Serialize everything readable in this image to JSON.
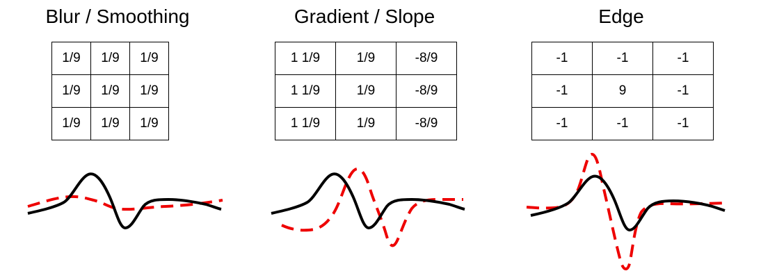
{
  "panels": [
    {
      "title": "Blur / Smoothing",
      "kernel": [
        [
          "1/9",
          "1/9",
          "1/9"
        ],
        [
          "1/9",
          "1/9",
          "1/9"
        ],
        [
          "1/9",
          "1/9",
          "1/9"
        ]
      ]
    },
    {
      "title": "Gradient / Slope",
      "kernel": [
        [
          "1 1/9",
          "1/9",
          "-8/9"
        ],
        [
          "1 1/9",
          "1/9",
          "-8/9"
        ],
        [
          "1 1/9",
          "1/9",
          "-8/9"
        ]
      ]
    },
    {
      "title": "Edge",
      "kernel": [
        [
          "-1",
          "-1",
          "-1"
        ],
        [
          "-1",
          "9",
          "-1"
        ],
        [
          "-1",
          "-1",
          "-1"
        ]
      ]
    }
  ],
  "colors": {
    "original_signal": "#000000",
    "filtered_signal": "#ee0000"
  }
}
